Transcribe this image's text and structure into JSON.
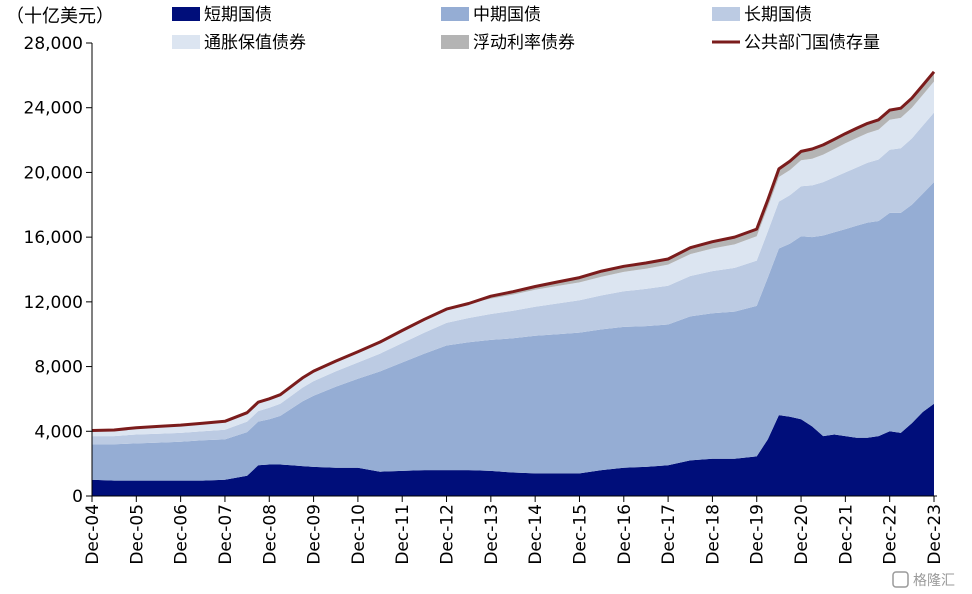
{
  "chart_data": {
    "type": "area",
    "unit_label": "（十亿美元）",
    "title": "",
    "xlabel": "",
    "ylabel": "",
    "ylim": [
      0,
      28000
    ],
    "y_ticks": [
      0,
      4000,
      8000,
      12000,
      16000,
      20000,
      24000,
      28000
    ],
    "y_tick_labels": [
      "0",
      "4,000",
      "8,000",
      "12,000",
      "16,000",
      "20,000",
      "24,000",
      "28,000"
    ],
    "x_tick_labels": [
      "Dec-04",
      "Dec-05",
      "Dec-06",
      "Dec-07",
      "Dec-08",
      "Dec-09",
      "Dec-10",
      "Dec-11",
      "Dec-12",
      "Dec-13",
      "Dec-14",
      "Dec-15",
      "Dec-16",
      "Dec-17",
      "Dec-18",
      "Dec-19",
      "Dec-20",
      "Dec-21",
      "Dec-22",
      "Dec-23"
    ],
    "grid": false,
    "legend_position": "top",
    "x": [
      "Dec-04",
      "Jun-05",
      "Dec-05",
      "Jun-06",
      "Dec-06",
      "Jun-07",
      "Dec-07",
      "Jun-08",
      "Sep-08",
      "Dec-08",
      "Mar-09",
      "Jun-09",
      "Sep-09",
      "Dec-09",
      "Jun-10",
      "Dec-10",
      "Jun-11",
      "Dec-11",
      "Jun-12",
      "Dec-12",
      "Jun-13",
      "Dec-13",
      "Jun-14",
      "Dec-14",
      "Jun-15",
      "Dec-15",
      "Jun-16",
      "Dec-16",
      "Jun-17",
      "Dec-17",
      "Jun-18",
      "Dec-18",
      "Jun-19",
      "Dec-19",
      "Mar-20",
      "Jun-20",
      "Sep-20",
      "Dec-20",
      "Mar-21",
      "Jun-21",
      "Sep-21",
      "Dec-21",
      "Mar-22",
      "Jun-22",
      "Sep-22",
      "Dec-22",
      "Mar-23",
      "Jun-23",
      "Sep-23",
      "Dec-23"
    ],
    "series": [
      {
        "name": "短期国债",
        "color": "#000e7a",
        "values": [
          1000,
          950,
          950,
          950,
          950,
          950,
          1000,
          1250,
          1900,
          1950,
          1950,
          1900,
          1850,
          1800,
          1750,
          1750,
          1500,
          1550,
          1600,
          1600,
          1600,
          1550,
          1450,
          1400,
          1400,
          1400,
          1600,
          1750,
          1800,
          1900,
          2200,
          2300,
          2300,
          2450,
          3500,
          5000,
          4900,
          4750,
          4300,
          3700,
          3800,
          3700,
          3600,
          3600,
          3700,
          4000,
          3900,
          4500,
          5200,
          5700
        ]
      },
      {
        "name": "中期国债",
        "color": "#95add4",
        "values": [
          2200,
          2250,
          2300,
          2350,
          2400,
          2500,
          2500,
          2700,
          2700,
          2800,
          3000,
          3500,
          4000,
          4400,
          5000,
          5500,
          6200,
          6700,
          7200,
          7700,
          7900,
          8100,
          8300,
          8500,
          8600,
          8700,
          8700,
          8700,
          8700,
          8700,
          8900,
          9000,
          9100,
          9300,
          10000,
          10300,
          10700,
          11300,
          11700,
          12400,
          12500,
          12800,
          13100,
          13300,
          13300,
          13500,
          13600,
          13500,
          13500,
          13700
        ]
      },
      {
        "name": "长期国债",
        "color": "#bccbe3",
        "values": [
          500,
          500,
          550,
          550,
          550,
          550,
          600,
          650,
          650,
          700,
          750,
          800,
          850,
          900,
          950,
          1000,
          1100,
          1200,
          1300,
          1400,
          1500,
          1600,
          1700,
          1800,
          1900,
          2000,
          2100,
          2200,
          2300,
          2400,
          2500,
          2600,
          2700,
          2800,
          2850,
          2900,
          3000,
          3100,
          3200,
          3300,
          3400,
          3500,
          3600,
          3700,
          3800,
          3900,
          4000,
          4100,
          4200,
          4300
        ]
      },
      {
        "name": "通胀保值债券",
        "color": "#dce5f1",
        "values": [
          350,
          380,
          420,
          450,
          480,
          500,
          520,
          550,
          550,
          560,
          560,
          580,
          600,
          620,
          640,
          660,
          720,
          780,
          820,
          850,
          900,
          950,
          1000,
          1050,
          1080,
          1100,
          1150,
          1200,
          1250,
          1300,
          1350,
          1400,
          1450,
          1500,
          1500,
          1520,
          1550,
          1600,
          1650,
          1700,
          1750,
          1800,
          1820,
          1830,
          1850,
          1850,
          1870,
          1890,
          1900,
          1920
        ]
      },
      {
        "name": "浮动利率债券",
        "color": "#b4b4b4",
        "values": [
          0,
          0,
          0,
          0,
          0,
          0,
          0,
          0,
          0,
          0,
          0,
          0,
          0,
          0,
          0,
          0,
          0,
          0,
          0,
          0,
          0,
          150,
          180,
          200,
          250,
          300,
          350,
          350,
          350,
          350,
          400,
          420,
          450,
          450,
          450,
          500,
          550,
          550,
          600,
          600,
          600,
          600,
          600,
          600,
          600,
          600,
          600,
          600,
          600,
          600
        ]
      },
      {
        "name": "公共部门国债存量",
        "color": "#7b1c1c",
        "kind": "line",
        "values": [
          4050,
          4080,
          4220,
          4300,
          4380,
          4500,
          4620,
          5150,
          5800,
          6010,
          6260,
          6780,
          7300,
          7720,
          8340,
          8910,
          9520,
          10230,
          10920,
          11550,
          11900,
          12350,
          12630,
          12950,
          13230,
          13500,
          13900,
          14200,
          14400,
          14650,
          15350,
          15720,
          16000,
          16500,
          18300,
          20220,
          20700,
          21300,
          21450,
          21700,
          22050,
          22400,
          22720,
          23030,
          23250,
          23850,
          23970,
          24590,
          25400,
          26220
        ]
      }
    ]
  },
  "watermark": "格隆汇"
}
